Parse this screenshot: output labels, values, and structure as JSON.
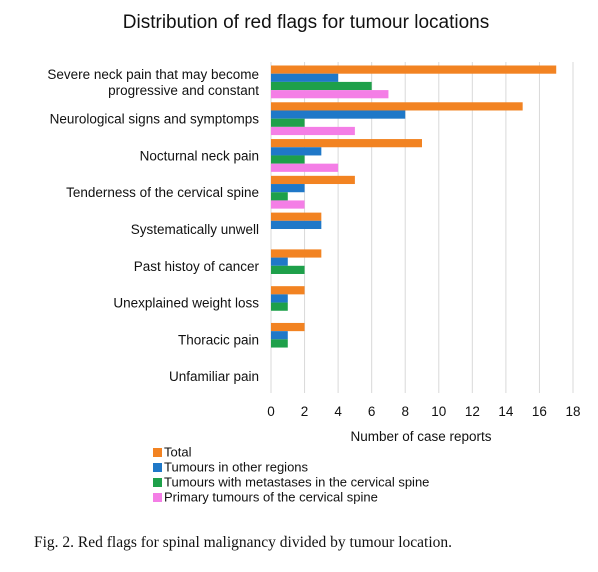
{
  "caption": "Fig. 2. Red flags for spinal malignancy divided by tumour location.",
  "chart_data": {
    "type": "bar",
    "orientation": "horizontal",
    "title": "Distribution of red flags for tumour locations",
    "xlabel": "Number of case reports",
    "ylabel": "",
    "xlim": [
      0,
      18
    ],
    "xticks": [
      "0",
      "2",
      "4",
      "6",
      "8",
      "10",
      "12",
      "14",
      "16",
      "18"
    ],
    "grid": "vertical",
    "legend_position": "bottom-left",
    "categories": [
      [
        "Severe neck pain that may become",
        "progressive and constant"
      ],
      [
        "Neurological signs and symptomps"
      ],
      [
        "Nocturnal neck pain"
      ],
      [
        "Tenderness of the cervical spine"
      ],
      [
        "Systematically unwell"
      ],
      [
        "Past histoy of cancer"
      ],
      [
        "Unexplained weight loss"
      ],
      [
        "Thoracic pain"
      ],
      [
        "Unfamiliar pain"
      ]
    ],
    "series": [
      {
        "name": "Total",
        "color": "#f28322",
        "values": [
          17,
          15,
          9,
          5,
          3,
          3,
          2,
          2,
          0
        ]
      },
      {
        "name": "Tumours in other regions",
        "color": "#1f78c8",
        "values": [
          4,
          8,
          3,
          2,
          3,
          1,
          1,
          1,
          0
        ]
      },
      {
        "name": "Tumours with metastases in the cervical spine",
        "color": "#1ea04a",
        "values": [
          6,
          2,
          2,
          1,
          0,
          2,
          1,
          1,
          0
        ]
      },
      {
        "name": "Primary tumours of the cervical spine",
        "color": "#f47ee6",
        "values": [
          7,
          5,
          4,
          2,
          0,
          0,
          0,
          0,
          0
        ]
      }
    ]
  }
}
